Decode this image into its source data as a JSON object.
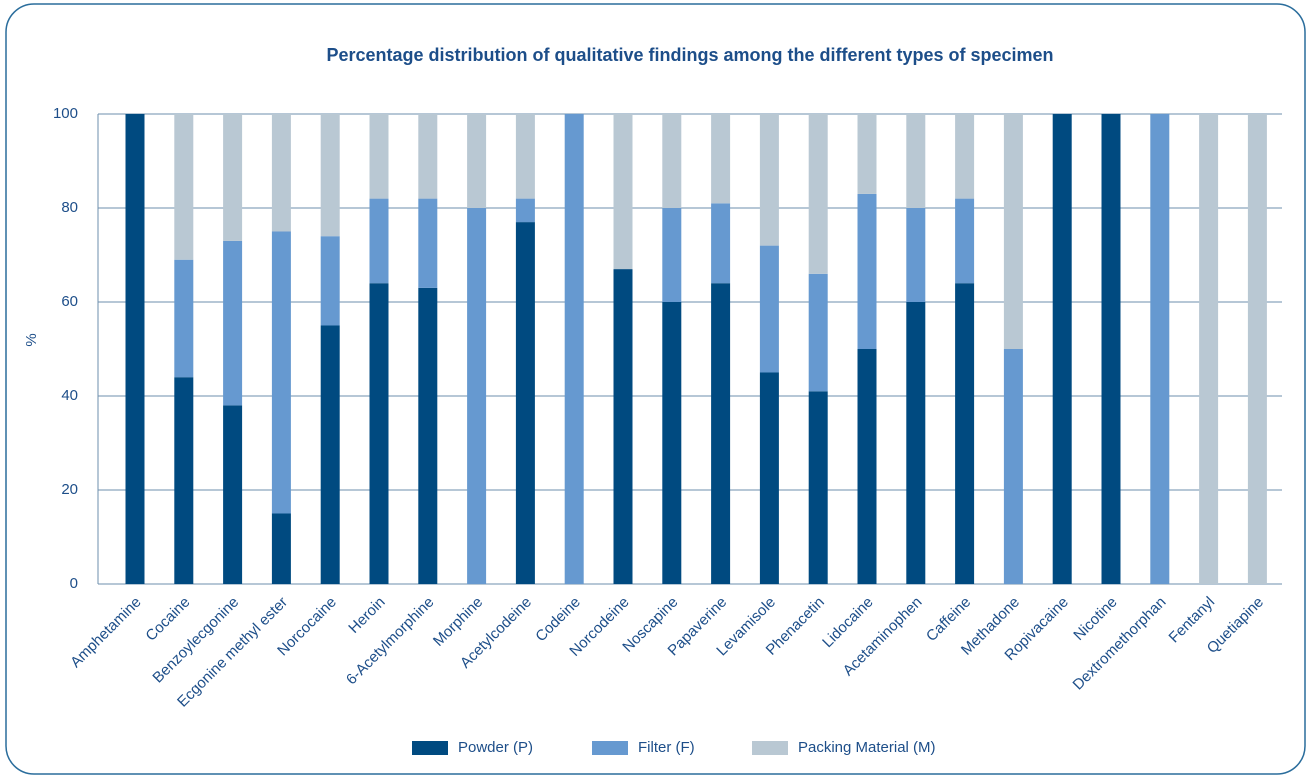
{
  "chart_data": {
    "type": "stacked_bar",
    "title": "Percentage distribution of qualitative findings among the different types of specimen",
    "y_label": "%",
    "categories": [
      "Amphetamine",
      "Cocaine",
      "Benzoylecgonine",
      "Ecgonine methyl ester",
      "Norcocaine",
      "Heroin",
      "6-Acetylmorphine",
      "Morphine",
      "Acetylcodeine",
      "Codeine",
      "Norcodeine",
      "Noscapine",
      "Papaverine",
      "Levamisole",
      "Phenacetin",
      "Lidocaine",
      "Acetaminophen",
      "Caffeine",
      "Methadone",
      "Ropivacaine",
      "Nicotine",
      "Dextromethorphan",
      "Fentanyl",
      "Quetiapine"
    ],
    "series": [
      {
        "name": "Powder (P)",
        "color": "#004a80",
        "values": [
          100,
          44,
          38,
          15,
          55,
          64,
          63,
          0,
          77,
          0,
          67,
          60,
          64,
          45,
          41,
          50,
          60,
          64,
          0,
          100,
          100,
          0,
          0,
          0
        ]
      },
      {
        "name": "Filter (F)",
        "color": "#6699d0",
        "values": [
          0,
          25,
          35,
          60,
          19,
          18,
          19,
          80,
          5,
          100,
          0,
          20,
          17,
          27,
          25,
          33,
          20,
          18,
          50,
          0,
          0,
          100,
          0,
          0
        ]
      },
      {
        "name": "Packing Material (M)",
        "color": "#b9c8d3",
        "values": [
          0,
          31,
          27,
          25,
          26,
          18,
          18,
          20,
          18,
          0,
          33,
          20,
          19,
          28,
          34,
          17,
          20,
          18,
          50,
          0,
          0,
          0,
          100,
          100
        ]
      }
    ],
    "ylim": [
      0,
      100
    ],
    "yticks": [
      0,
      20,
      40,
      60,
      80,
      100
    ],
    "grid": true,
    "legend": "bottom"
  }
}
